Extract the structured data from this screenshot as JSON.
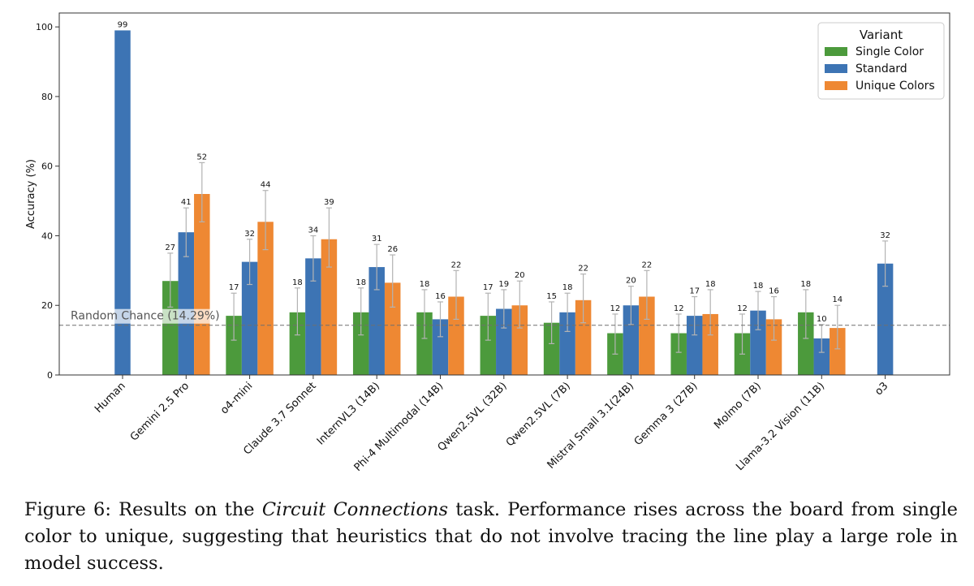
{
  "chart_data": {
    "type": "bar",
    "ylabel": "Accuracy (%)",
    "ylim": [
      0,
      104
    ],
    "yticks": [
      0,
      20,
      40,
      60,
      80,
      100
    ],
    "grid": false,
    "legend": {
      "title": "Variant",
      "placement": "top-right"
    },
    "categories": [
      "Human",
      "Gemini 2.5 Pro",
      "o4-mini",
      "Claude 3.7 Sonnet",
      "InternVL3 (14B)",
      "Phi-4 Multimodal (14B)",
      "Qwen2.5VL (32B)",
      "Qwen2.5VL (7B)",
      "Mistral Small 3.1(24B)",
      "Gemma 3 (27B)",
      "Molmo (7B)",
      "Llama-3.2 Vision (11B)",
      "o3"
    ],
    "series": [
      {
        "name": "Single Color",
        "color": "#4c9a3c",
        "values": [
          null,
          27,
          17,
          18,
          18,
          18,
          17,
          15,
          12,
          12,
          12,
          18,
          null
        ],
        "labels": [
          null,
          "27",
          "17",
          "18",
          "18",
          "18",
          "17",
          "15",
          "12",
          "12",
          "12",
          "18",
          null
        ],
        "err_low": [
          null,
          19.5,
          10,
          11.5,
          11.5,
          10.5,
          10,
          9,
          6,
          6.5,
          6,
          10.5,
          null
        ],
        "err_high": [
          null,
          35,
          23.5,
          25,
          25,
          24.5,
          23.5,
          21,
          17.5,
          17.5,
          17.5,
          24.5,
          null
        ]
      },
      {
        "name": "Standard",
        "color": "#3d74b4",
        "values": [
          99,
          41,
          32.5,
          33.5,
          31,
          16,
          19,
          18,
          20,
          17,
          18.5,
          10.5,
          32
        ],
        "labels": [
          "99",
          "41",
          "32",
          "34",
          "31",
          "16",
          "19",
          "18",
          "20",
          "17",
          "18",
          "10",
          "32"
        ],
        "err_low": [
          null,
          34,
          26,
          27,
          24.5,
          11,
          13.5,
          12.5,
          14.5,
          11.5,
          13,
          6.5,
          25.5
        ],
        "err_high": [
          null,
          48,
          39,
          40,
          37.5,
          21,
          24.5,
          23.5,
          25.5,
          22.5,
          24,
          14.5,
          38.5
        ]
      },
      {
        "name": "Unique Colors",
        "color": "#ee8833",
        "values": [
          null,
          52,
          44,
          39,
          26.5,
          22.5,
          20,
          21.5,
          22.5,
          17.5,
          16,
          13.5,
          null
        ],
        "labels": [
          null,
          "52",
          "44",
          "39",
          "26",
          "22",
          "20",
          "22",
          "22",
          "18",
          "16",
          "14",
          null
        ],
        "err_low": [
          null,
          44,
          36,
          31,
          19.5,
          16,
          13.5,
          15,
          16,
          11.5,
          10,
          7.5,
          null
        ],
        "err_high": [
          null,
          61,
          53,
          48,
          34.5,
          30,
          27,
          29,
          30,
          24.5,
          22.5,
          20,
          null
        ]
      }
    ],
    "reference_line": {
      "value": 14.29,
      "label": "Random Chance (14.29%)"
    }
  },
  "caption": {
    "prefix": "Figure 6: Results on the ",
    "emphasis": "Circuit Connections",
    "suffix": " task. Performance rises across the board from single color to unique, suggesting that heuristics that do not involve tracing the line play a large role in model success."
  }
}
